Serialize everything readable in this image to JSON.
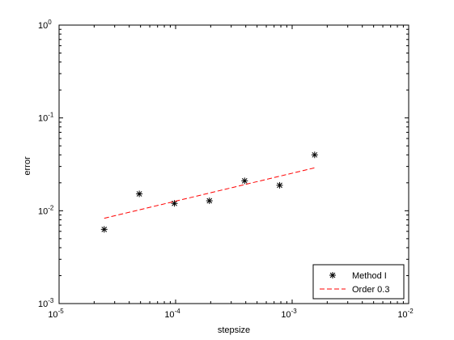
{
  "chart_data": {
    "type": "scatter",
    "title": "",
    "xlabel": "stepsize",
    "ylabel": "error",
    "xscale": "log",
    "yscale": "log",
    "xlim": [
      1e-05,
      0.01
    ],
    "ylim": [
      0.001,
      1
    ],
    "grid": false,
    "legend_position": "bottom-right",
    "x_ticks": [
      {
        "base": "10",
        "exp": "-5"
      },
      {
        "base": "10",
        "exp": "-4"
      },
      {
        "base": "10",
        "exp": "-3"
      },
      {
        "base": "10",
        "exp": "-2"
      }
    ],
    "y_ticks": [
      {
        "base": "10",
        "exp": "-3"
      },
      {
        "base": "10",
        "exp": "-2"
      },
      {
        "base": "10",
        "exp": "-1"
      },
      {
        "base": "10",
        "exp": "0"
      }
    ],
    "series": [
      {
        "name": "Method I",
        "marker": "asterisk",
        "color": "#000000",
        "x": [
          2.44e-05,
          4.88e-05,
          9.77e-05,
          0.000195,
          0.000391,
          0.000781,
          0.00156
        ],
        "y": [
          0.0063,
          0.0152,
          0.012,
          0.0128,
          0.021,
          0.0188,
          0.04
        ]
      },
      {
        "name": "Order 0.3",
        "style": "dashed",
        "color": "#ff0000",
        "x": [
          2.44e-05,
          0.00156
        ],
        "y": [
          0.0083,
          0.029
        ]
      }
    ]
  }
}
